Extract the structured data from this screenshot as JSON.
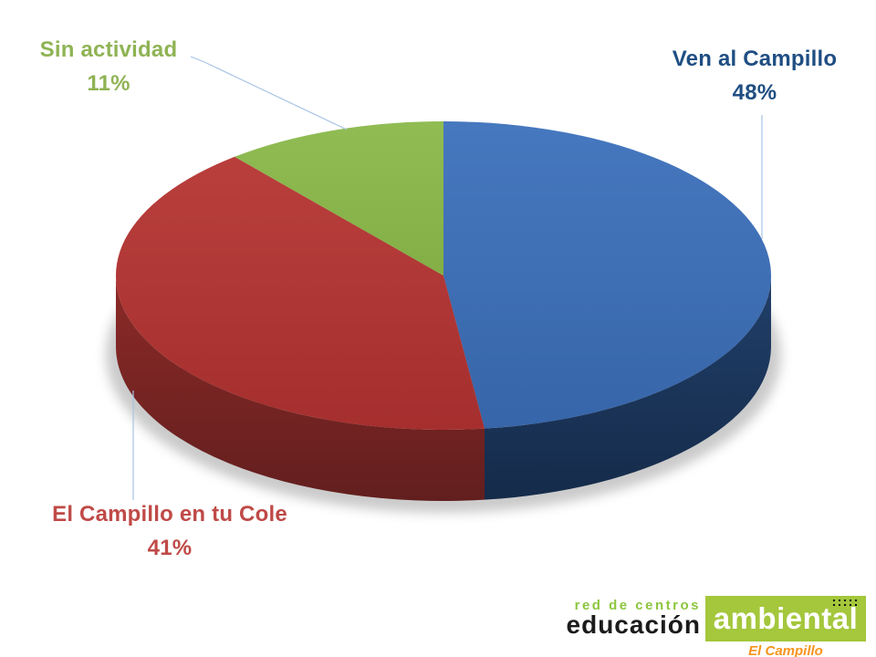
{
  "chart_data": {
    "type": "pie",
    "style": "3d",
    "title": "",
    "unit": "%",
    "direction": "clockwise",
    "start_angle_deg": 0,
    "legend_position": "callouts",
    "slices": [
      {
        "label": "Ven al Campillo",
        "pct": "48%",
        "value": 48,
        "top_color": "#4678BF",
        "top_color2": "#3765A9",
        "side_color": "#213F69",
        "side_color2": "#152B4A",
        "label_color": "#1F4E82"
      },
      {
        "label": "El Campillo en tu Cole",
        "pct": "41%",
        "value": 41,
        "top_color": "#B93F3C",
        "top_color2": "#A52F2E",
        "side_color": "#8C2A28",
        "side_color2": "#621F1E",
        "label_color": "#BF4A47"
      },
      {
        "label": "Sin actividad",
        "pct": "11%",
        "value": 11,
        "top_color": "#90BC53",
        "top_color2": "#83AF46",
        "side_color": "#5F7A33",
        "side_color2": "#4A6128",
        "label_color": "#8FB354"
      }
    ]
  },
  "colors": {
    "background": "#FFFFFF",
    "leader_line": "#A7C3E4",
    "shadow": "#8A8A8A"
  },
  "logo": {
    "line1": "red de centros",
    "line2": "educación",
    "box_text": "ambiental",
    "sub_text": "El Campillo",
    "line1_color": "#8CC63E",
    "line2_color": "#1B1B1B",
    "box_color": "#A4C73C",
    "box_text_color": "#FFFFFF",
    "sub_color": "#F7941E"
  }
}
